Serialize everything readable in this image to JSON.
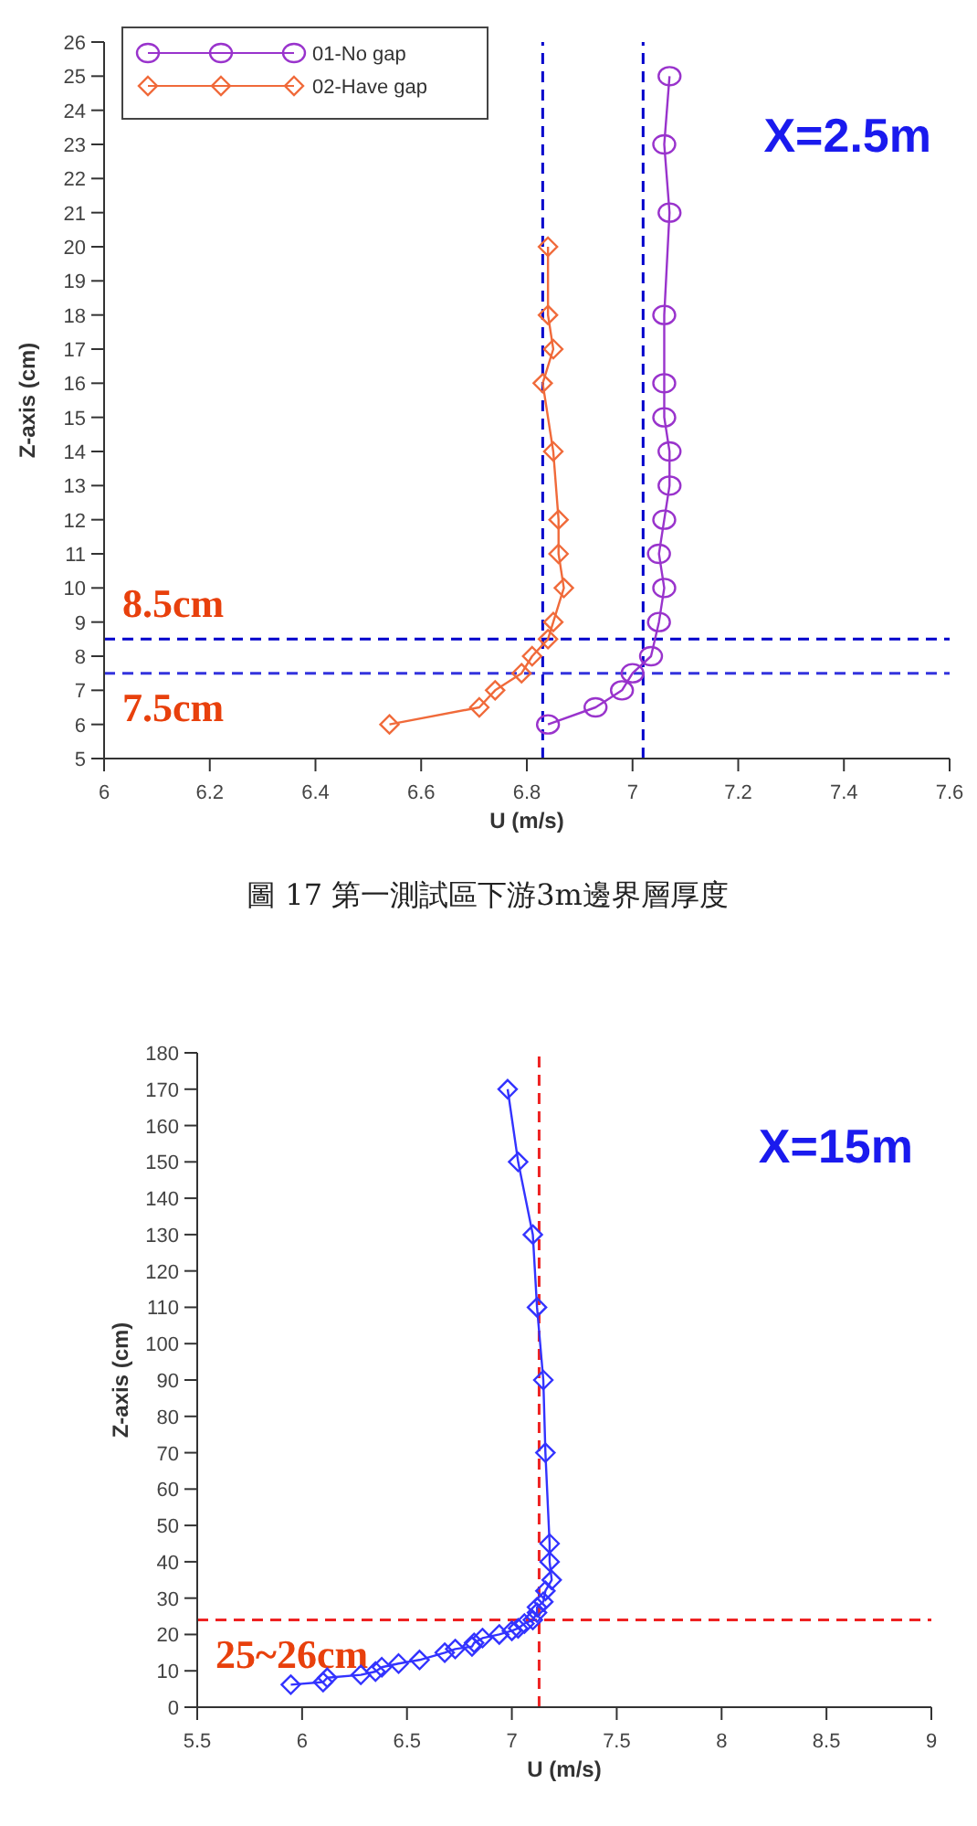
{
  "chart_data": [
    {
      "type": "line",
      "xlabel": "U (m/s)",
      "ylabel": "Z-axis (cm)",
      "xlim": [
        6,
        7.6
      ],
      "xticks": [
        6,
        6.2,
        6.4,
        6.6,
        6.8,
        7,
        7.2,
        7.4,
        7.6
      ],
      "ylim": [
        5,
        26
      ],
      "yticks": [
        5,
        6,
        7,
        8,
        9,
        10,
        11,
        12,
        13,
        14,
        15,
        16,
        17,
        18,
        19,
        20,
        21,
        22,
        23,
        24,
        25,
        26
      ],
      "legend": "top left",
      "line_style": "solid",
      "series": [
        {
          "name": "01-No gap",
          "color": "#9933cc",
          "marker": "circle",
          "x": [
            6.84,
            6.93,
            6.98,
            7.0,
            7.035,
            7.05,
            7.06,
            7.05,
            7.06,
            7.07,
            7.07,
            7.06,
            7.06,
            7.06,
            7.07,
            7.06,
            7.07
          ],
          "values": [
            6,
            6.5,
            7,
            7.5,
            8,
            9,
            10,
            11,
            12,
            13,
            14,
            15,
            16,
            18,
            21,
            23,
            25
          ]
        },
        {
          "name": "02-Have gap",
          "color": "#f06a3a",
          "marker": "diamond",
          "x": [
            6.54,
            6.71,
            6.74,
            6.79,
            6.81,
            6.84,
            6.85,
            6.87,
            6.86,
            6.86,
            6.85,
            6.83,
            6.85,
            6.84,
            6.84
          ],
          "values": [
            6,
            6.5,
            7,
            7.5,
            8,
            8.5,
            9,
            10,
            11,
            12,
            14,
            16,
            17,
            18,
            20
          ]
        }
      ],
      "ref_lines": [
        {
          "axis": "y",
          "value": 8.5,
          "label": "8.5cm",
          "color": "#0000cc",
          "line_style": "dashed"
        },
        {
          "axis": "y",
          "value": 7.5,
          "label": "7.5cm",
          "color": "#3333dd",
          "line_style": "dashed"
        },
        {
          "axis": "x",
          "value": 6.83,
          "color": "#0000cc",
          "line_style": "dashed"
        },
        {
          "axis": "x",
          "value": 7.02,
          "color": "#0000cc",
          "line_style": "dashed"
        }
      ],
      "annotations": [
        "X=2.5m",
        "圖 17 第一測試區下游3m邊界層厚度"
      ]
    },
    {
      "type": "line",
      "xlabel": "U (m/s)",
      "ylabel": "Z-axis (cm)",
      "xlim": [
        5.5,
        9
      ],
      "xticks": [
        5.5,
        6,
        6.5,
        7,
        7.5,
        8,
        8.5,
        9
      ],
      "ylim": [
        0,
        180
      ],
      "yticks": [
        0,
        10,
        20,
        30,
        40,
        50,
        60,
        70,
        80,
        90,
        100,
        110,
        120,
        130,
        140,
        150,
        160,
        170,
        180
      ],
      "line_style": "solid",
      "series": [
        {
          "color": "#3333ff",
          "marker": "diamond",
          "x": [
            5.946,
            6.1,
            6.12,
            6.28,
            6.35,
            6.38,
            6.46,
            6.56,
            6.68,
            6.73,
            6.81,
            6.82,
            6.86,
            6.94,
            7.0,
            7.03,
            7.06,
            7.1,
            7.12,
            7.12,
            7.15,
            7.16,
            7.19,
            7.18,
            7.18,
            7.16,
            7.15,
            7.12,
            7.1,
            7.03,
            6.98
          ],
          "values": [
            6.2,
            6.9,
            8.1,
            8.9,
            9.8,
            11,
            12,
            13,
            15,
            16,
            16.7,
            17.7,
            19,
            20,
            21,
            21.7,
            23,
            24,
            26,
            27.5,
            29,
            32,
            35,
            40,
            45,
            70,
            90,
            110,
            130,
            150,
            170
          ]
        }
      ],
      "ref_lines": [
        {
          "axis": "x",
          "value": 7.13,
          "color": "#ee2222",
          "line_style": "dashed"
        },
        {
          "axis": "y",
          "value": 24,
          "label": "25~26cm",
          "color": "#ee2222",
          "line_style": "dashed"
        }
      ],
      "annotations": [
        "X=15m"
      ]
    }
  ]
}
